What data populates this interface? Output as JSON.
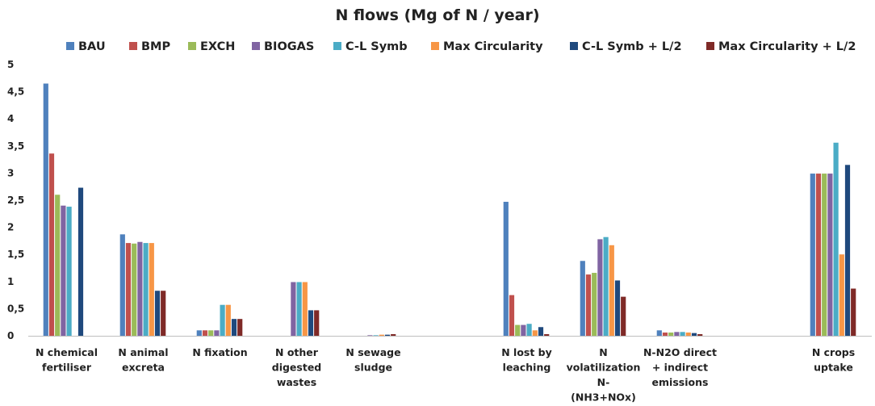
{
  "chart_data": {
    "type": "bar",
    "title": "N flows (Mg of N / year)",
    "xlabel": "",
    "ylabel": "",
    "ylim": [
      0,
      5
    ],
    "yticks": [
      {
        "value": 0,
        "label": "0"
      },
      {
        "value": 0.5,
        "label": "0,5"
      },
      {
        "value": 1,
        "label": "1"
      },
      {
        "value": 1.5,
        "label": "1,5"
      },
      {
        "value": 2,
        "label": "2"
      },
      {
        "value": 2.5,
        "label": "2,5"
      },
      {
        "value": 3,
        "label": "3"
      },
      {
        "value": 3.5,
        "label": "3,5"
      },
      {
        "value": 4,
        "label": "4"
      },
      {
        "value": 4.5,
        "label": "4,5"
      },
      {
        "value": 5,
        "label": "5"
      }
    ],
    "grid": false,
    "legend_position": "top",
    "categories": [
      [
        "N chemical",
        "fertiliser"
      ],
      [
        "N animal",
        "excreta"
      ],
      [
        "N fixation"
      ],
      [
        "N other",
        "digested",
        "wastes"
      ],
      [
        "N sewage",
        "sludge"
      ],
      [],
      [
        "N lost by",
        "leaching"
      ],
      [
        "N",
        "volatilization",
        "N-",
        "(NH3+NOx)"
      ],
      [
        "N-N2O direct",
        "+ indirect",
        "emissions"
      ],
      [],
      [
        "N crops",
        "uptake"
      ]
    ],
    "series": [
      {
        "name": "BAU",
        "color": "#4f81bd",
        "values": [
          4.65,
          1.87,
          0.1,
          0,
          0,
          0,
          2.47,
          1.38,
          0.1,
          0,
          2.99
        ]
      },
      {
        "name": "BMP",
        "color": "#c0504d",
        "values": [
          3.36,
          1.71,
          0.1,
          0,
          0,
          0,
          0.75,
          1.13,
          0.06,
          0,
          2.99
        ]
      },
      {
        "name": "EXCH",
        "color": "#9bbb59",
        "values": [
          2.6,
          1.7,
          0.1,
          0,
          0,
          0,
          0.2,
          1.16,
          0.06,
          0,
          2.99
        ]
      },
      {
        "name": "BIOGAS",
        "color": "#8064a2",
        "values": [
          2.4,
          1.73,
          0.1,
          0.99,
          0.01,
          0,
          0.2,
          1.78,
          0.07,
          0,
          2.99
        ]
      },
      {
        "name": "C-L Symb",
        "color": "#4bacc6",
        "values": [
          2.38,
          1.71,
          0.57,
          0.99,
          0.01,
          0,
          0.22,
          1.82,
          0.07,
          0,
          3.56
        ]
      },
      {
        "name": "Max Circularity",
        "color": "#f79646",
        "values": [
          0,
          1.71,
          0.57,
          0.99,
          0.02,
          0,
          0.1,
          1.67,
          0.06,
          0,
          1.5
        ]
      },
      {
        "name": "C-L Symb + L/2",
        "color": "#1f497d",
        "values": [
          2.73,
          0.83,
          0.31,
          0.47,
          0.02,
          0,
          0.16,
          1.02,
          0.05,
          0,
          3.15
        ]
      },
      {
        "name": "Max Circularity + L/2",
        "color": "#7f2a27",
        "values": [
          0,
          0.83,
          0.31,
          0.47,
          0.03,
          0,
          0.03,
          0.72,
          0.03,
          0,
          0.87
        ]
      }
    ]
  }
}
